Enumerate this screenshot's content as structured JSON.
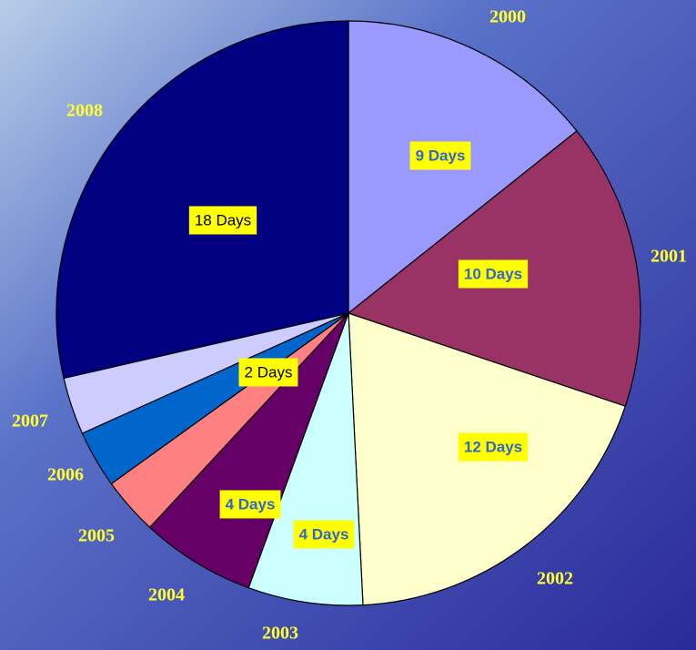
{
  "chart_data": {
    "type": "pie",
    "categories": [
      "2000",
      "2001",
      "2002",
      "2003",
      "2004",
      "2005",
      "2006",
      "2007",
      "2008"
    ],
    "values": [
      9,
      10,
      12,
      4,
      4,
      2,
      2,
      2,
      18
    ],
    "value_labels": [
      "9 Days",
      "10 Days",
      "12 Days",
      "4 Days",
      "4 Days",
      "2 Days",
      null,
      null,
      "18 Days"
    ],
    "colors": [
      "#9999ff",
      "#993366",
      "#ffffcc",
      "#ccffff",
      "#660066",
      "#ff8080",
      "#0066cc",
      "#ccccff",
      "#000080"
    ]
  }
}
